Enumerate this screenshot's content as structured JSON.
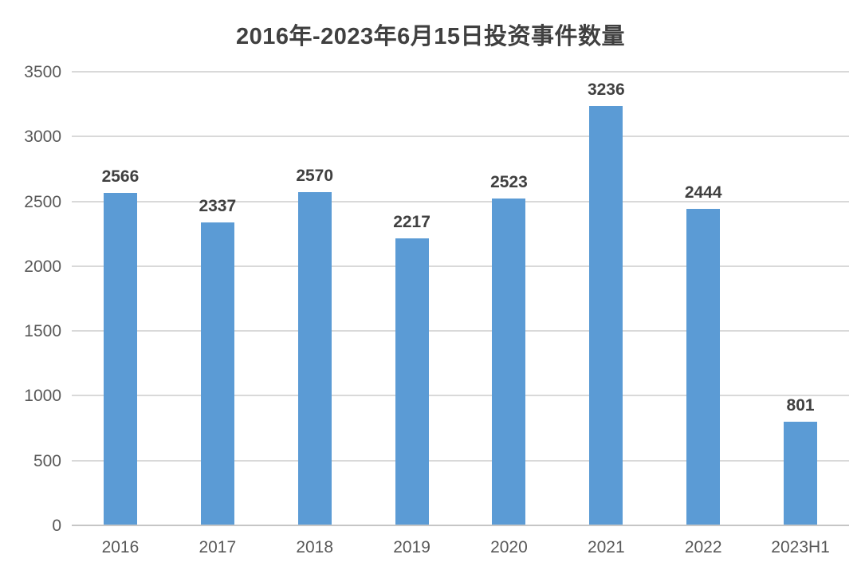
{
  "chart_data": {
    "type": "bar",
    "title": "2016年-2023年6月15日投资事件数量",
    "categories": [
      "2016",
      "2017",
      "2018",
      "2019",
      "2020",
      "2021",
      "2022",
      "2023H1"
    ],
    "values": [
      2566,
      2337,
      2570,
      2217,
      2523,
      3236,
      2444,
      801
    ],
    "xlabel": "",
    "ylabel": "",
    "ylim": [
      0,
      3500
    ],
    "yticks": [
      0,
      500,
      1000,
      1500,
      2000,
      2500,
      3000,
      3500
    ],
    "grid": true,
    "legend_position": "none",
    "data_labels_shown": true,
    "colors": {
      "bar": "#5b9bd5",
      "gridline": "#d9d9d9",
      "baseline": "#c6c6c6",
      "title_text": "#404040",
      "value_label_text": "#404040",
      "tick_label_text": "#595959",
      "background": "#ffffff"
    }
  }
}
